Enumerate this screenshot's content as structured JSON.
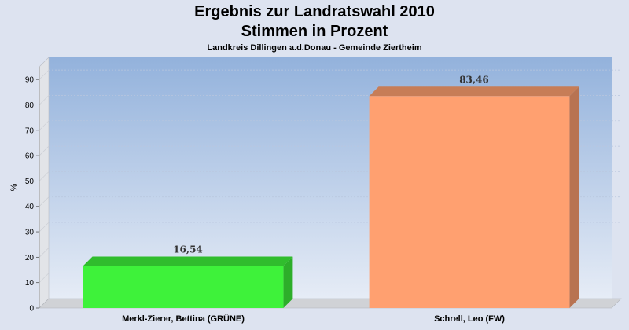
{
  "chart_data": {
    "type": "bar",
    "title": "Ergebnis zur Landratswahl 2010",
    "subtitle": "Stimmen in Prozent",
    "caption": "Landkreis Dillingen a.d.Donau - Gemeinde Ziertheim",
    "ylabel": "%",
    "xlabel": "",
    "ylim": [
      0,
      95
    ],
    "yticks": [
      0,
      10,
      20,
      30,
      40,
      50,
      60,
      70,
      80,
      90
    ],
    "categories": [
      "Merkl-Zierer, Bettina (GRÜNE)",
      "Schrell, Leo (FW)"
    ],
    "values": [
      16.54,
      83.46
    ],
    "value_labels": [
      "16,54",
      "83,46"
    ],
    "colors": [
      "#3ef23a",
      "#ffa070"
    ],
    "grid": true,
    "legend": "none"
  }
}
